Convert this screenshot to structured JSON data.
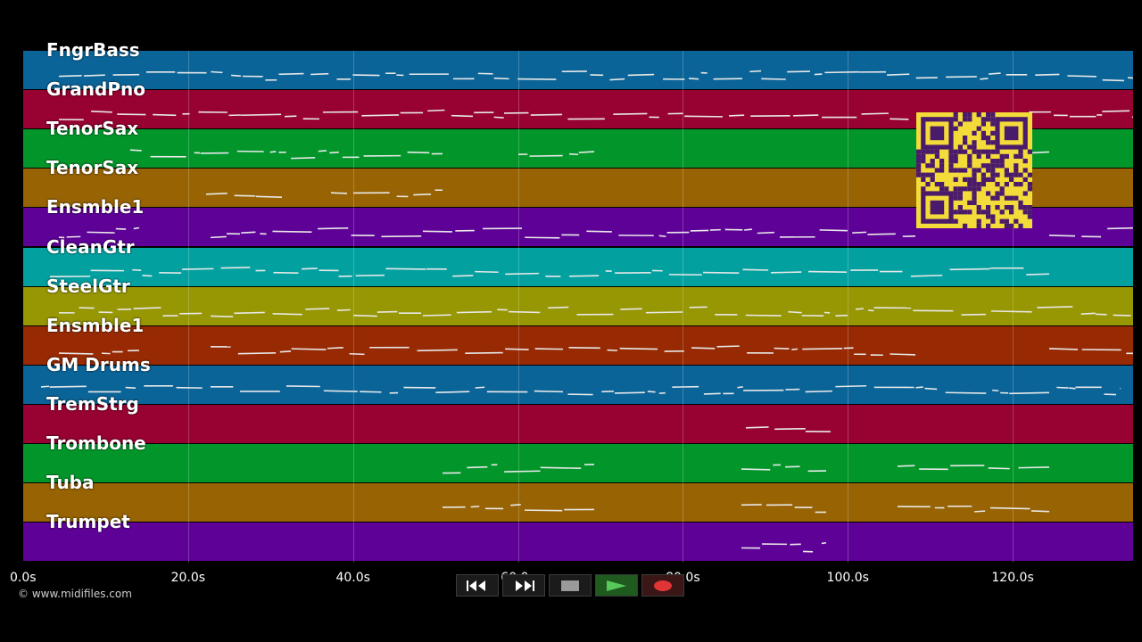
{
  "tracks": [
    {
      "name": "FngrBass",
      "color": "#0a6498"
    },
    {
      "name": "GrandPno",
      "color": "#970232"
    },
    {
      "name": "TenorSax",
      "color": "#02962a"
    },
    {
      "name": "TenorSax",
      "color": "#976303"
    },
    {
      "name": "Ensmble1",
      "color": "#5e0297"
    },
    {
      "name": "CleanGtr",
      "color": "#03a0a0"
    },
    {
      "name": "SteelGtr",
      "color": "#979603"
    },
    {
      "name": "Ensmble1",
      "color": "#972a03"
    },
    {
      "name": "GM Drums",
      "color": "#0a6498"
    },
    {
      "name": "TremStrg",
      "color": "#970232"
    },
    {
      "name": "Trombone",
      "color": "#02962a"
    },
    {
      "name": "Tuba",
      "color": "#976303"
    },
    {
      "name": "Trumpet",
      "color": "#5e0297"
    }
  ],
  "timeline": {
    "ticks": [
      "0.0s",
      "20.0s",
      "40.0s",
      "60.0s",
      "80.0s",
      "100.0s",
      "120.0s"
    ],
    "tick_values": [
      0,
      20,
      40,
      60,
      80,
      100,
      120
    ],
    "max_seconds": 134.6
  },
  "copyright": "© www.midifiles.com",
  "transport": [
    {
      "name": "rewind-button",
      "icon": "rewind-icon"
    },
    {
      "name": "fast-forward-button",
      "icon": "fast-forward-icon"
    },
    {
      "name": "stop-button",
      "icon": "stop-icon"
    },
    {
      "name": "play-button",
      "icon": "play-icon"
    },
    {
      "name": "record-button",
      "icon": "record-icon"
    }
  ],
  "qr_code": {
    "icon": "qr-code-icon",
    "fg": "#4a1a6b",
    "bg": "#f3db3a"
  }
}
